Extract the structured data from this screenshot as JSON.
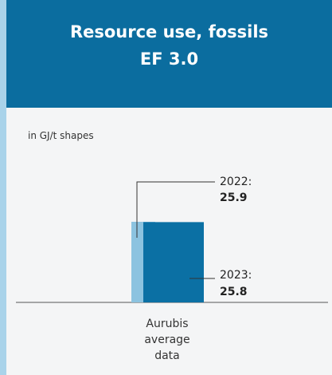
{
  "chart_data": {
    "type": "bar",
    "title": "Resource use, fossils",
    "subtitle": "EF 3.0",
    "yaxis_label": "in GJ/t shapes",
    "categories": [
      "Aurubis average data"
    ],
    "series": [
      {
        "name": "2022:",
        "color": "#8cc3e0",
        "values": [
          25.9
        ]
      },
      {
        "name": "2023:",
        "color": "#0b70a4",
        "values": [
          25.8
        ]
      }
    ]
  }
}
